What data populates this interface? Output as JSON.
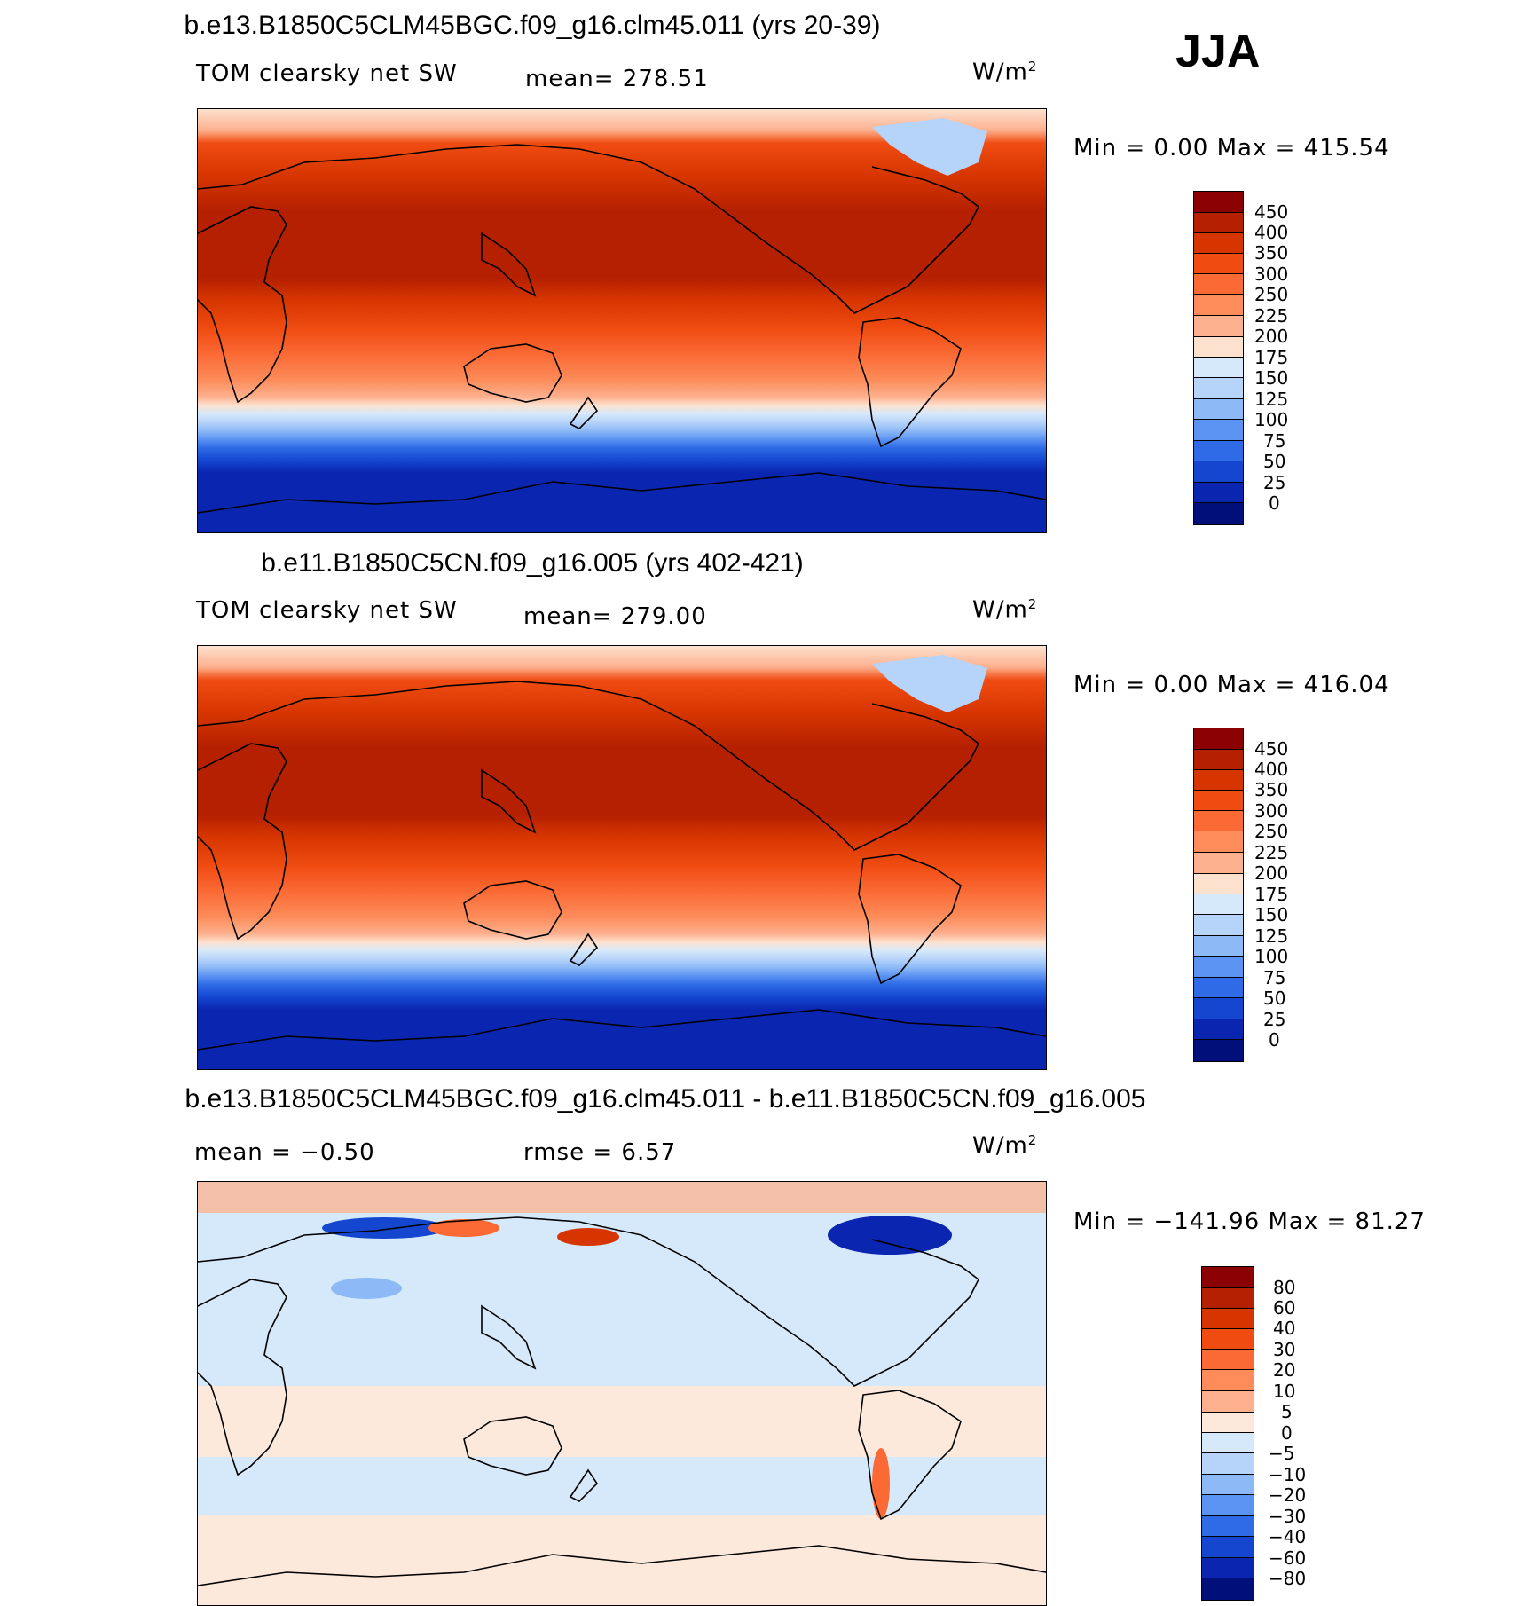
{
  "season": "JJA",
  "panels": [
    {
      "title": "b.e13.B1850C5CLM45BGC.f09_g16.clm45.011 (yrs 20-39)",
      "variable": "TOM clearsky net SW",
      "stat1": "mean= 278.51",
      "stat2": "",
      "units": "W/m",
      "units_exp": "2",
      "minmax": "Min =    0.00 Max = 415.54",
      "kind": "abs",
      "levels": [
        "450",
        "400",
        "350",
        "300",
        "250",
        "225",
        "200",
        "175",
        "150",
        "125",
        "100",
        "75",
        "50",
        "25",
        "0"
      ],
      "colors": [
        "#8b0000",
        "#b52000",
        "#d63500",
        "#f04c12",
        "#fb6a35",
        "#fd8c5a",
        "#fdb08e",
        "#fde1cf",
        "#d6e9fb",
        "#b6d3f9",
        "#8db9f7",
        "#5b93f2",
        "#2f6be6",
        "#1446d0",
        "#0a25b0",
        "#000f7a"
      ]
    },
    {
      "title": "b.e11.B1850C5CN.f09_g16.005 (yrs 402-421)",
      "variable": "TOM clearsky net SW",
      "stat1": "mean= 279.00",
      "stat2": "",
      "units": "W/m",
      "units_exp": "2",
      "minmax": "Min =    0.00 Max = 416.04",
      "kind": "abs",
      "levels": [
        "450",
        "400",
        "350",
        "300",
        "250",
        "225",
        "200",
        "175",
        "150",
        "125",
        "100",
        "75",
        "50",
        "25",
        "0"
      ],
      "colors": [
        "#8b0000",
        "#b52000",
        "#d63500",
        "#f04c12",
        "#fb6a35",
        "#fd8c5a",
        "#fdb08e",
        "#fde1cf",
        "#d6e9fb",
        "#b6d3f9",
        "#8db9f7",
        "#5b93f2",
        "#2f6be6",
        "#1446d0",
        "#0a25b0",
        "#000f7a"
      ]
    },
    {
      "title": "b.e13.B1850C5CLM45BGC.f09_g16.clm45.011 - b.e11.B1850C5CN.f09_g16.005",
      "variable": "",
      "stat1": "mean =   −0.50",
      "stat2": "rmse =    6.57",
      "units": "W/m",
      "units_exp": "2",
      "minmax": "Min = −141.96 Max =  81.27",
      "kind": "diff",
      "levels": [
        "80",
        "60",
        "40",
        "30",
        "20",
        "10",
        "5",
        "0",
        "−5",
        "−10",
        "−20",
        "−30",
        "−40",
        "−60",
        "−80"
      ],
      "colors": [
        "#8b0000",
        "#b52000",
        "#d63500",
        "#f04c12",
        "#fb6a35",
        "#fd8c5a",
        "#fdb08e",
        "#fde9dc",
        "#d6e9fb",
        "#b6d3f9",
        "#8db9f7",
        "#5b93f2",
        "#2f6be6",
        "#1446d0",
        "#0a25b0",
        "#000f7a"
      ]
    }
  ]
}
